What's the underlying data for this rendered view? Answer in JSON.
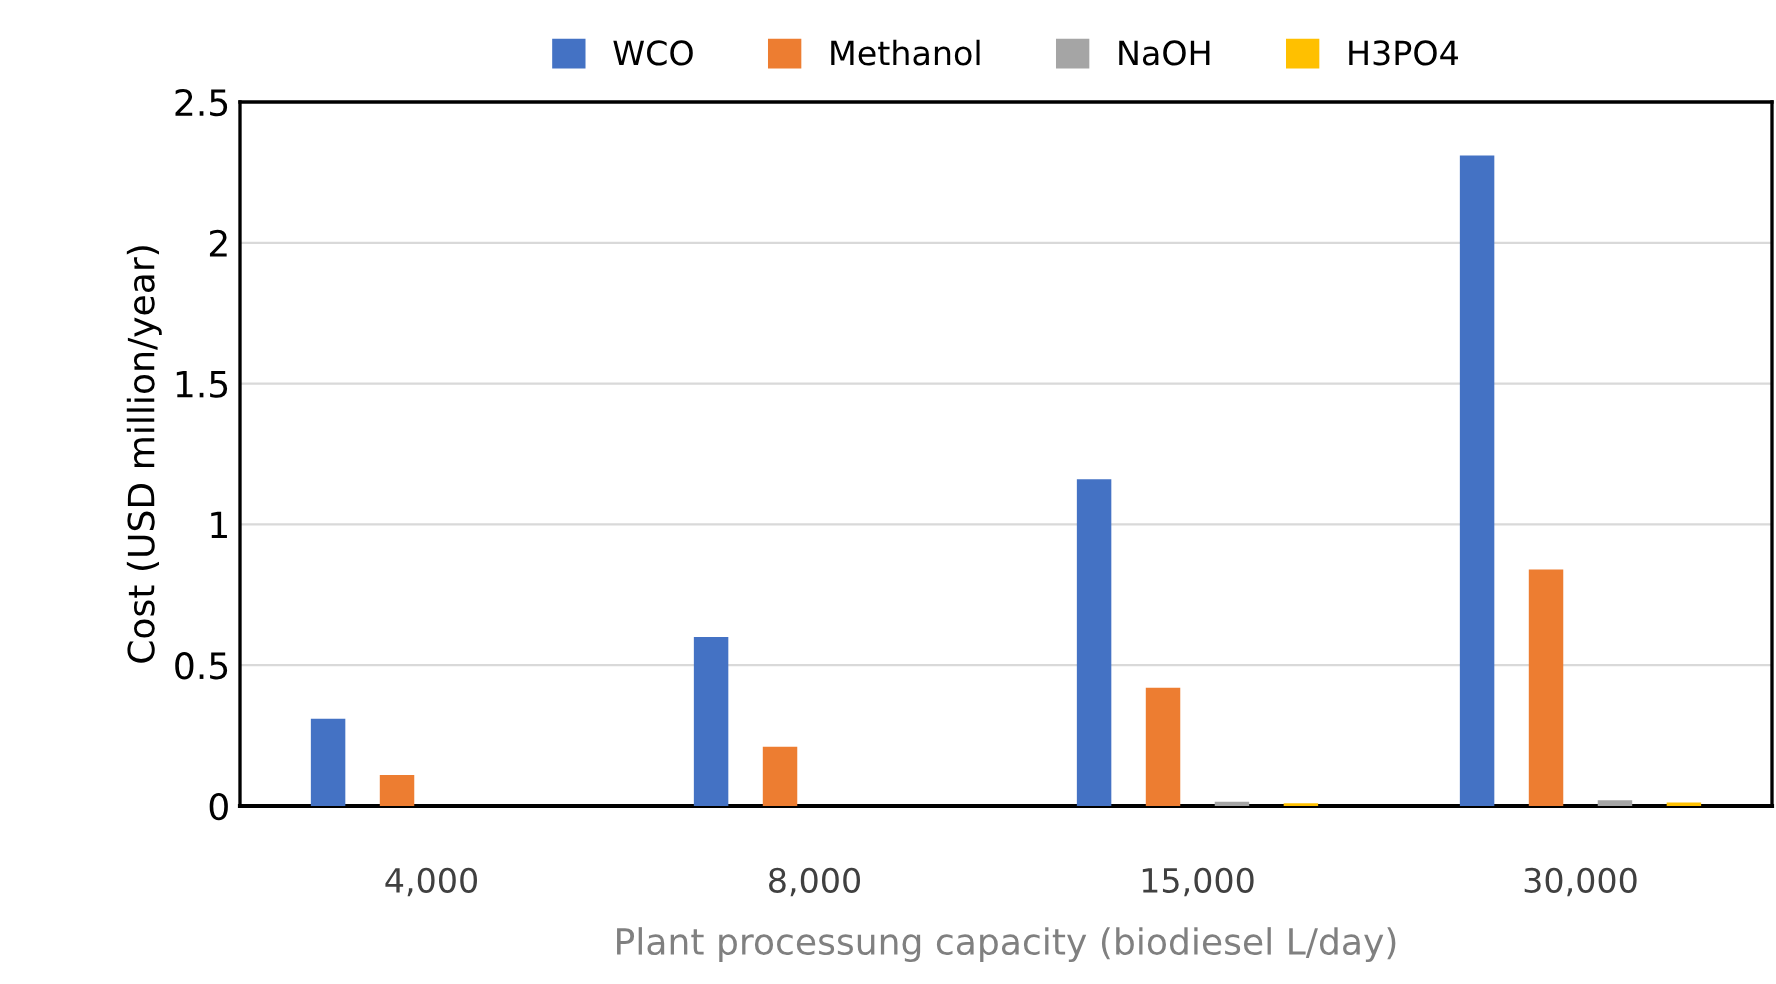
{
  "chart_data": {
    "type": "bar",
    "xlabel": "Plant processung capacity (biodiesel L/day)",
    "ylabel": "Cost (USD million/year)",
    "categories": [
      "4,000",
      "8,000",
      "15,000",
      "30,000"
    ],
    "series": [
      {
        "name": "WCO",
        "color": "#4472c4",
        "values": [
          0.31,
          0.6,
          1.16,
          2.31
        ]
      },
      {
        "name": "Methanol",
        "color": "#ed7d31",
        "values": [
          0.11,
          0.21,
          0.42,
          0.84
        ]
      },
      {
        "name": "NaOH",
        "color": "#a5a5a5",
        "values": [
          null,
          null,
          0.015,
          0.02
        ]
      },
      {
        "name": "H3PO4",
        "color": "#ffc000",
        "values": [
          null,
          null,
          0.01,
          0.012
        ]
      }
    ],
    "ylim": [
      0,
      2.5
    ],
    "yticks": [
      0,
      0.5,
      1,
      1.5,
      2,
      2.5
    ],
    "grid": "y",
    "legend": "top"
  }
}
